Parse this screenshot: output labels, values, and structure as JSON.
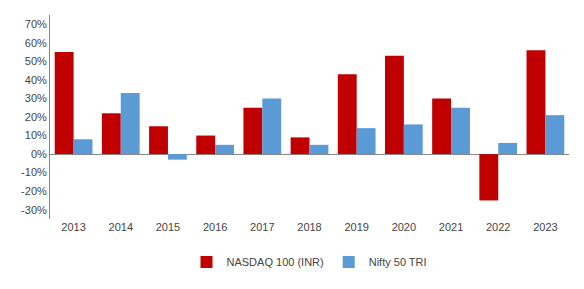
{
  "chart_data": {
    "type": "bar",
    "categories": [
      "2013",
      "2014",
      "2015",
      "2016",
      "2017",
      "2018",
      "2019",
      "2020",
      "2021",
      "2022",
      "2023"
    ],
    "series": [
      {
        "name": "NASDAQ 100 (INR)",
        "color": "#C00000",
        "values": [
          55,
          22,
          15,
          10,
          25,
          9,
          43,
          53,
          30,
          -25,
          56
        ]
      },
      {
        "name": "Nifty 50 TRI",
        "color": "#5B9BD5",
        "values": [
          8,
          33,
          -3,
          5,
          30,
          5,
          14,
          16,
          25,
          6,
          21
        ]
      }
    ],
    "ylim": [
      -35,
      75
    ],
    "yticks": [
      {
        "value": -30,
        "label": "-30%"
      },
      {
        "value": -20,
        "label": "-20%"
      },
      {
        "value": -10,
        "label": "-10%"
      },
      {
        "value": 0,
        "label": "0%"
      },
      {
        "value": 10,
        "label": "10%"
      },
      {
        "value": 20,
        "label": "20%"
      },
      {
        "value": 30,
        "label": "30%"
      },
      {
        "value": 40,
        "label": "40%"
      },
      {
        "value": 50,
        "label": "50%"
      },
      {
        "value": 60,
        "label": "60%"
      },
      {
        "value": 70,
        "label": "70%"
      }
    ],
    "grid": false,
    "legend": "bottom"
  }
}
